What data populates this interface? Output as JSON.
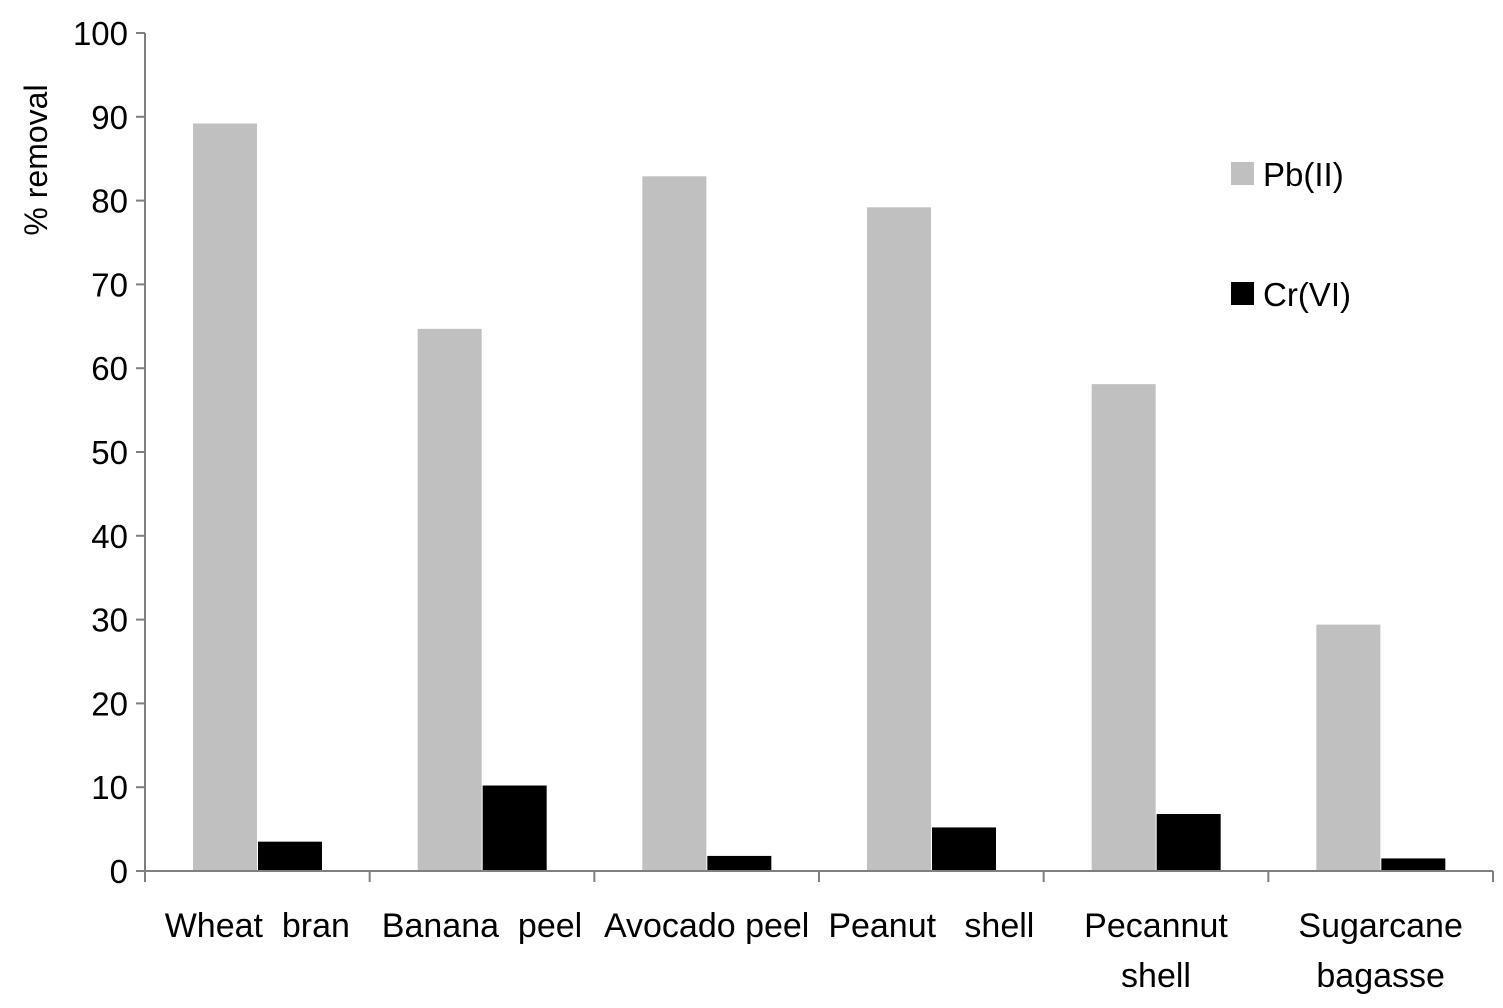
{
  "chart_data": {
    "type": "bar",
    "title": "",
    "xlabel": "",
    "ylabel": "% removal",
    "ylim": [
      0,
      100
    ],
    "yticks": [
      "0",
      "10",
      "20",
      "30",
      "40",
      "50",
      "60",
      "70",
      "80",
      "90",
      "100"
    ],
    "grid": false,
    "legend_position": "right",
    "categories": [
      [
        "Wheat  bran"
      ],
      [
        "Banana  peel"
      ],
      [
        "Avocado peel"
      ],
      [
        "Peanut   shell"
      ],
      [
        "Pecannut",
        "shell"
      ],
      [
        "Sugarcane",
        "bagasse"
      ]
    ],
    "series": [
      {
        "name": "Pb(II)",
        "color": "#c0c0c0",
        "values": [
          89.2,
          64.7,
          82.9,
          79.2,
          58.1,
          29.4
        ]
      },
      {
        "name": "Cr(VI)",
        "color": "#000000",
        "values": [
          3.5,
          10.2,
          1.8,
          5.2,
          6.8,
          1.5
        ]
      }
    ]
  }
}
